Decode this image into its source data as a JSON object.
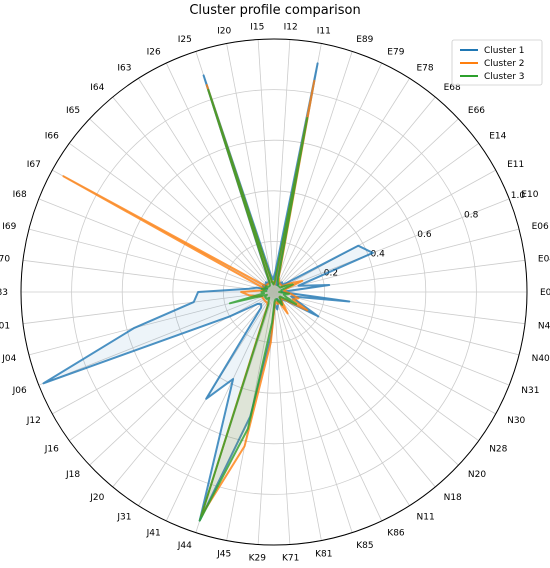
{
  "chart_data": {
    "type": "radar",
    "title": "Cluster profile comparison",
    "categories": [
      "E03",
      "E04",
      "E06",
      "E10",
      "E11",
      "E14",
      "E66",
      "E68",
      "E78",
      "E79",
      "E89",
      "I11",
      "I12",
      "I15",
      "I20",
      "I25",
      "I26",
      "I63",
      "I64",
      "I65",
      "I66",
      "I67",
      "I68",
      "I69",
      "I70",
      "I83",
      "J01",
      "J04",
      "J06",
      "J12",
      "J16",
      "J18",
      "J20",
      "J31",
      "J41",
      "J44",
      "J45",
      "K29",
      "K71",
      "K81",
      "K85",
      "K86",
      "N11",
      "N18",
      "N20",
      "N28",
      "N30",
      "N31",
      "N40",
      "N41"
    ],
    "rlim": [
      0,
      1.0
    ],
    "rticks": [
      "0.2",
      "0.4",
      "0.6",
      "0.8",
      "1.0"
    ],
    "grid": true,
    "legend_position": "top-right",
    "series": [
      {
        "name": "Cluster 1",
        "color": "#1f77b4",
        "values": [
          0.03,
          0.22,
          0.1,
          0.42,
          0.38,
          0.06,
          0.04,
          0.05,
          0.04,
          0.03,
          0.03,
          0.92,
          0.08,
          0.05,
          0.07,
          0.9,
          0.05,
          0.04,
          0.05,
          0.04,
          0.05,
          0.05,
          0.03,
          0.07,
          0.1,
          0.3,
          0.32,
          0.57,
          0.98,
          0.2,
          0.08,
          0.07,
          0.08,
          0.5,
          0.38,
          0.95,
          0.5,
          0.17,
          0.05,
          0.07,
          0.05,
          0.03,
          0.06,
          0.05,
          0.04,
          0.06,
          0.2,
          0.1,
          0.07,
          0.3
        ]
      },
      {
        "name": "Cluster 2",
        "color": "#ff7f0e",
        "values": [
          0.05,
          0.04,
          0.05,
          0.12,
          0.07,
          0.04,
          0.04,
          0.04,
          0.04,
          0.05,
          0.06,
          0.85,
          0.03,
          0.04,
          0.04,
          0.86,
          0.04,
          0.04,
          0.04,
          0.04,
          0.04,
          0.95,
          0.05,
          0.04,
          0.05,
          0.13,
          0.1,
          0.07,
          0.05,
          0.05,
          0.05,
          0.05,
          0.05,
          0.05,
          0.06,
          0.93,
          0.62,
          0.2,
          0.05,
          0.04,
          0.05,
          0.04,
          0.1,
          0.05,
          0.03,
          0.05,
          0.15,
          0.08,
          0.1,
          0.07
        ]
      },
      {
        "name": "Cluster 3",
        "color": "#2ca02c",
        "values": [
          0.02,
          0.03,
          0.03,
          0.08,
          0.05,
          0.03,
          0.03,
          0.03,
          0.03,
          0.04,
          0.05,
          0.7,
          0.04,
          0.03,
          0.04,
          0.84,
          0.04,
          0.03,
          0.03,
          0.03,
          0.04,
          0.03,
          0.04,
          0.05,
          0.03,
          0.05,
          0.04,
          0.18,
          0.03,
          0.04,
          0.04,
          0.04,
          0.03,
          0.04,
          0.05,
          0.95,
          0.55,
          0.12,
          0.04,
          0.03,
          0.03,
          0.04,
          0.06,
          0.04,
          0.03,
          0.03,
          0.1,
          0.05,
          0.04,
          0.06
        ]
      }
    ]
  }
}
